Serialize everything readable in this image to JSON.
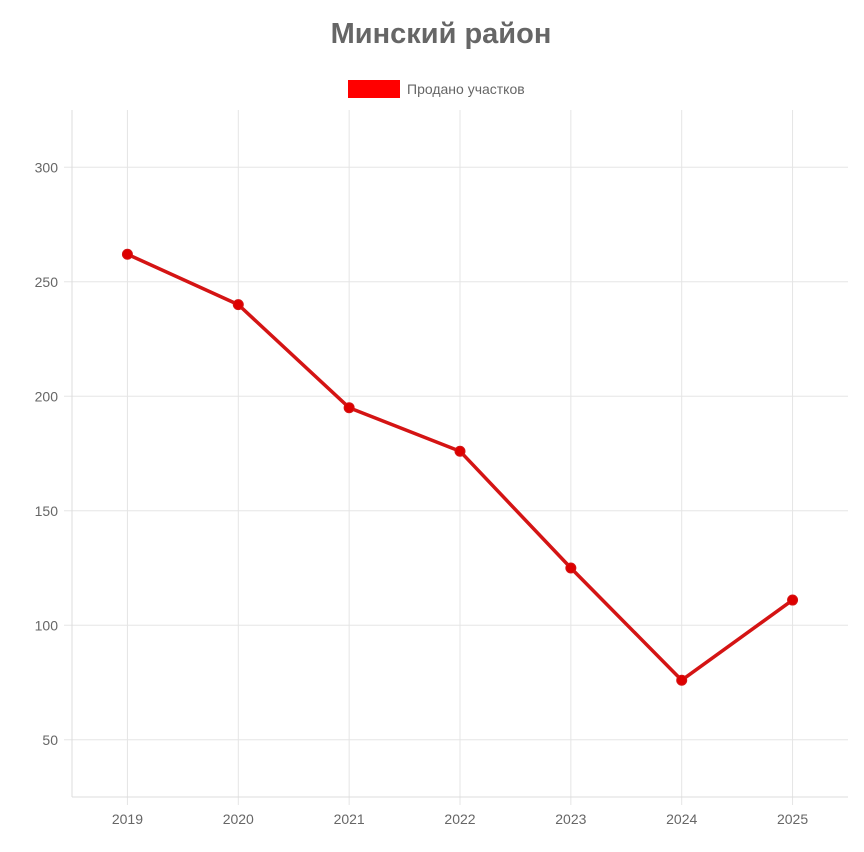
{
  "colors": {
    "series": "#ff0000",
    "line": "#d41414",
    "point": "#dd0000",
    "grid": "#e5e5e5",
    "text": "#666666"
  },
  "chart_data": {
    "type": "line",
    "title": "Минский район",
    "xlabel": "",
    "ylabel": "",
    "categories": [
      "2019",
      "2020",
      "2021",
      "2022",
      "2023",
      "2024",
      "2025"
    ],
    "series": [
      {
        "name": "Продано участков",
        "values": [
          262,
          240,
          195,
          176,
          125,
          76,
          111
        ]
      }
    ],
    "ylim": [
      25,
      325
    ],
    "yticks": [
      "50",
      "100",
      "150",
      "200",
      "250",
      "300"
    ],
    "grid": true,
    "legend": "top-center"
  }
}
